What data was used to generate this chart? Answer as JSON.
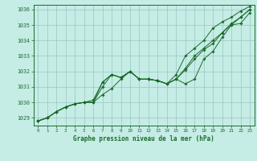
{
  "title": "Graphe pression niveau de la mer (hPa)",
  "bg_color": "#c6ece6",
  "grid_color": "#96c8c0",
  "line_color": "#1a6b2a",
  "xlim": [
    -0.5,
    23.5
  ],
  "ylim": [
    1028.5,
    1036.3
  ],
  "yticks": [
    1029,
    1030,
    1031,
    1032,
    1033,
    1034,
    1035,
    1036
  ],
  "xticks": [
    0,
    1,
    2,
    3,
    4,
    5,
    6,
    7,
    8,
    9,
    10,
    11,
    12,
    13,
    14,
    15,
    16,
    17,
    18,
    19,
    20,
    21,
    22,
    23
  ],
  "series": [
    [
      1028.8,
      1029.0,
      1029.4,
      1029.7,
      1029.9,
      1030.0,
      1030.0,
      1030.5,
      1030.9,
      1031.5,
      1032.0,
      1031.5,
      1031.5,
      1031.4,
      1031.2,
      1031.5,
      1031.2,
      1031.5,
      1032.8,
      1033.3,
      1034.2,
      1035.0,
      1035.1,
      1035.8
    ],
    [
      1028.8,
      1029.0,
      1029.4,
      1029.7,
      1029.9,
      1030.0,
      1030.0,
      1031.0,
      1031.8,
      1031.6,
      1032.0,
      1031.5,
      1031.5,
      1031.4,
      1031.2,
      1031.5,
      1032.2,
      1033.0,
      1033.5,
      1034.0,
      1034.5,
      1035.1,
      1035.5,
      1036.0
    ],
    [
      1028.8,
      1029.0,
      1029.4,
      1029.7,
      1029.9,
      1030.0,
      1030.0,
      1031.3,
      1031.8,
      1031.6,
      1032.0,
      1031.5,
      1031.5,
      1031.4,
      1031.2,
      1031.8,
      1033.0,
      1033.5,
      1034.0,
      1034.8,
      1035.2,
      1035.5,
      1035.9,
      1036.2
    ],
    [
      1028.8,
      1029.0,
      1029.4,
      1029.7,
      1029.9,
      1030.0,
      1030.15,
      1031.3,
      1031.8,
      1031.6,
      1032.0,
      1031.5,
      1031.5,
      1031.4,
      1031.2,
      1031.5,
      1032.1,
      1032.8,
      1033.4,
      1033.8,
      1034.5,
      1035.0,
      1035.5,
      1036.0
    ]
  ]
}
